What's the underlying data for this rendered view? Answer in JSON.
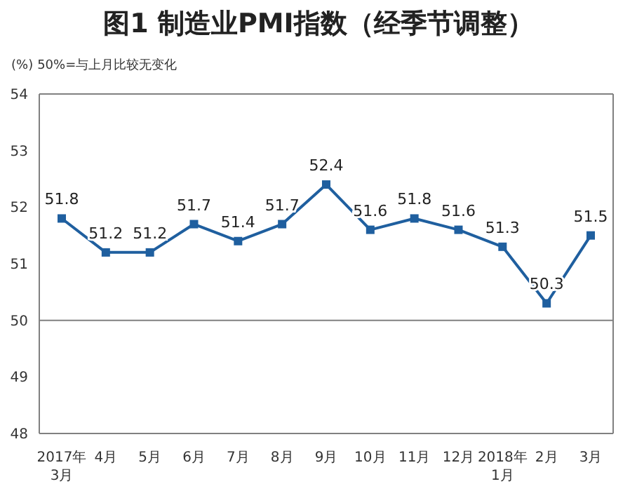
{
  "chart_data": {
    "type": "line",
    "title": "图1 制造业PMI指数（经季节调整）",
    "ylabel": "(%)",
    "annotations": [
      "50%=与上月比较无变化"
    ],
    "categories": [
      "2017年\n3月",
      "4月",
      "5月",
      "6月",
      "7月",
      "8月",
      "9月",
      "10月",
      "11月",
      "12月",
      "2018年\n1月",
      "2月",
      "3月"
    ],
    "series": [
      {
        "color": "#1f5f9f",
        "values": [
          51.8,
          51.2,
          51.2,
          51.7,
          51.4,
          51.7,
          52.4,
          51.6,
          51.8,
          51.6,
          51.3,
          50.3,
          51.5
        ]
      }
    ],
    "ylim": [
      48,
      54
    ],
    "yticks": [
      48,
      49,
      50,
      51,
      52,
      53,
      54
    ],
    "marker": "square",
    "line_style": "solid",
    "data_labels": true,
    "ref_lines": [
      {
        "axis": "y",
        "value": 50,
        "color": "#808080"
      }
    ]
  }
}
